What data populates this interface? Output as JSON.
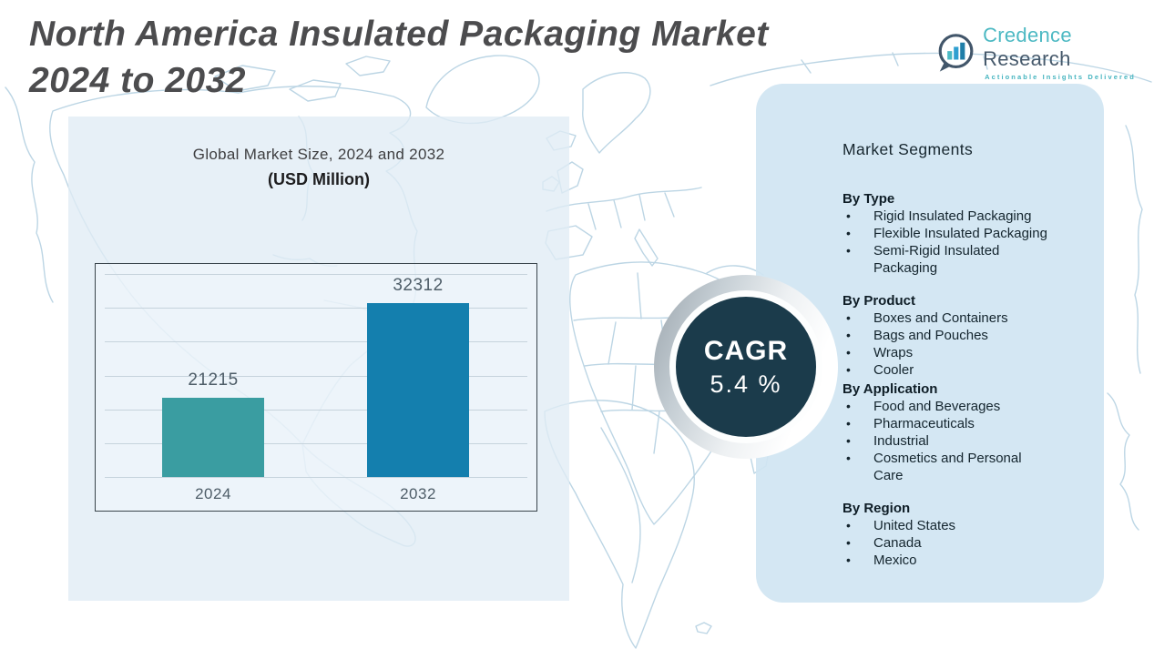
{
  "page": {
    "title_line1": "North America Insulated Packaging Market",
    "title_line2": "2024 to 2032"
  },
  "logo": {
    "name_primary": "Credence",
    "name_secondary": "Research",
    "tagline": "Actionable Insights Delivered"
  },
  "chart_data": {
    "type": "bar",
    "title": "Global Market Size, 2024 and 2032",
    "subtitle": "(USD Million)",
    "ylabel": "USD Million",
    "xlabel": "",
    "categories": [
      "2024",
      "2032"
    ],
    "values": [
      21215,
      32312
    ],
    "ylim": [
      12000,
      35700
    ],
    "grid": true,
    "legend": "none",
    "bar_colors": [
      "#3a9da1",
      "#147fae"
    ]
  },
  "cagr": {
    "label": "CAGR",
    "value": "5.4 %"
  },
  "segments": {
    "heading": "Market Segments",
    "groups": [
      {
        "label": "By Type",
        "items": [
          "Rigid Insulated Packaging",
          "Flexible Insulated Packaging",
          "Semi-Rigid Insulated Packaging"
        ]
      },
      {
        "label": "By Product",
        "items": [
          "Boxes and Containers",
          "Bags and Pouches",
          "Wraps",
          "Cooler"
        ]
      },
      {
        "label": "By Application",
        "items": [
          "Food and Beverages",
          "Pharmaceuticals",
          "Industrial",
          "Cosmetics and Personal Care"
        ]
      },
      {
        "label": "By Region",
        "items": [
          "United States",
          "Canada",
          "Mexico"
        ]
      }
    ]
  },
  "colors": {
    "bar_2024": "#3a9da1",
    "bar_2032": "#147fae",
    "cagr_circle": "#1b3b4b",
    "right_panel": "#d1e5f2",
    "left_panel": "#e0ecf5",
    "map_stroke": "#a6c8dc",
    "title_text": "#4c4c4e",
    "logo_teal": "#4db9c3",
    "logo_slate": "#46596b"
  }
}
